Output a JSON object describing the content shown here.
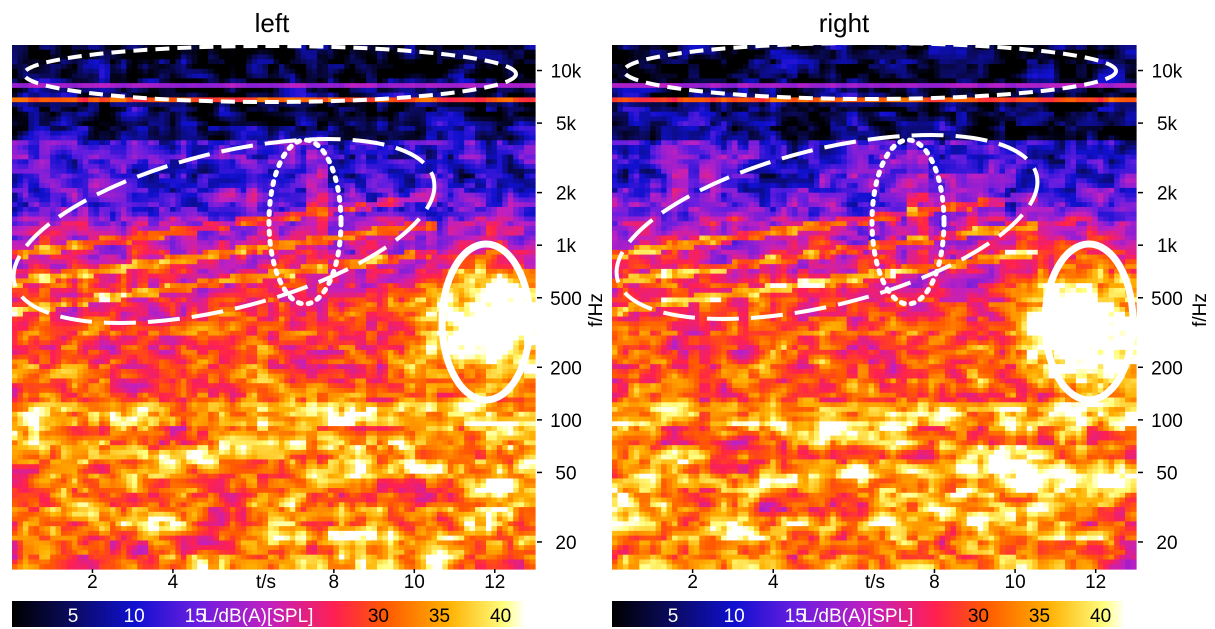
{
  "chart_data": {
    "type": "heatmap",
    "panels": [
      {
        "title": "left",
        "hotspot_peak_s": 11.9,
        "hotspot_peak_hz": 380
      },
      {
        "title": "right",
        "hotspot_peak_s": 11.6,
        "hotspot_peak_hz": 380
      }
    ],
    "x_axis": {
      "label": "t/s",
      "range": [
        0,
        13
      ],
      "ticks": [
        "2",
        "4",
        "8",
        "10",
        "12"
      ],
      "tick_values": [
        2,
        4,
        8,
        10,
        12
      ]
    },
    "y_axis": {
      "label": "f/Hz",
      "scale": "log",
      "range": [
        14,
        14000
      ],
      "ticks": [
        "10k",
        "5k",
        "2k",
        "1k",
        "500",
        "200",
        "100",
        "50",
        "20"
      ],
      "tick_values": [
        10000,
        5000,
        2000,
        1000,
        500,
        200,
        100,
        50,
        20
      ]
    },
    "colorbar": {
      "label": "L/dB(A)[SPL]",
      "range": [
        0,
        42
      ],
      "ticks": [
        "5",
        "10",
        "15",
        "30",
        "35",
        "40"
      ],
      "tick_values": [
        5,
        10,
        15,
        30,
        35,
        40
      ],
      "colors": [
        "#000000",
        "#0a0a5a",
        "#1010d0",
        "#6a1ee0",
        "#c020c0",
        "#ff2050",
        "#ff5a00",
        "#ffb000",
        "#ffff80",
        "#ffffff"
      ]
    },
    "annotations": [
      {
        "shape": "ellipse",
        "style": "short-dash",
        "region": "high-frequency band, ~6-9 kHz, full time range"
      },
      {
        "shape": "ellipse",
        "style": "long-dash",
        "region": "rising harmonic band, ~0.5-3 kHz, 0-10 s"
      },
      {
        "shape": "ellipse",
        "style": "dotted",
        "region": "~7-8 s, ~0.5-3 kHz"
      },
      {
        "shape": "ellipse",
        "style": "solid",
        "region": "~11-13 s, ~200-900 Hz hotspot"
      }
    ]
  }
}
